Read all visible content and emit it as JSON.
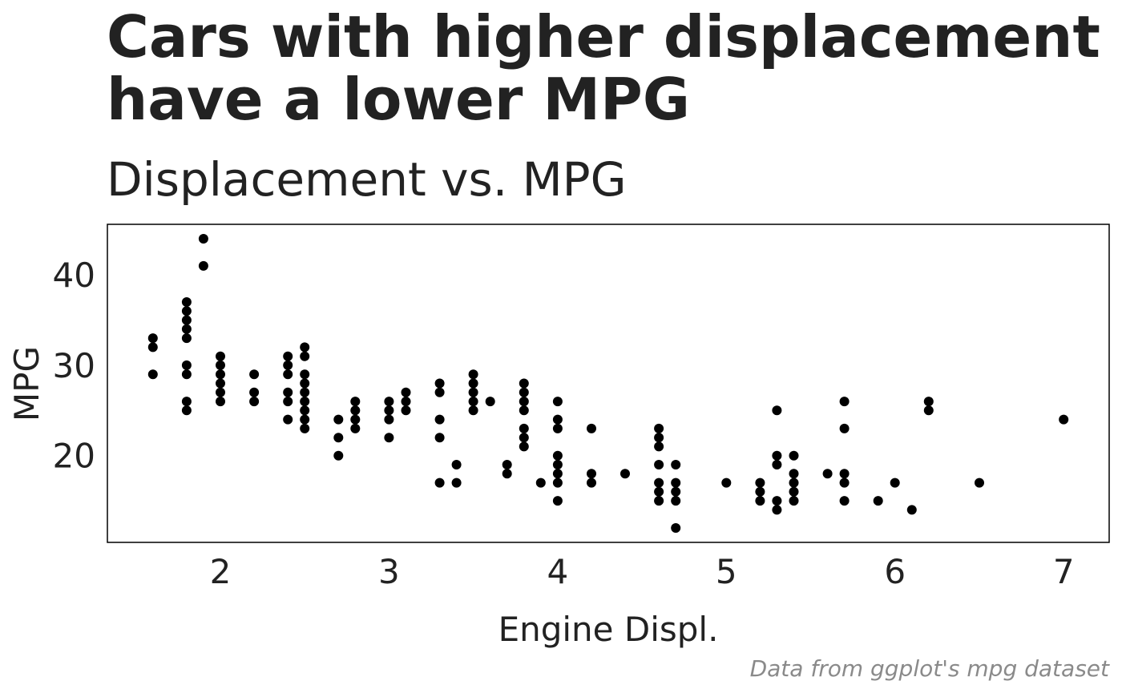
{
  "chart_data": {
    "type": "scatter",
    "title_lines": [
      "Cars with higher displacement",
      "have a lower MPG"
    ],
    "subtitle": "Displacement vs. MPG",
    "xlabel": "Engine Displ.",
    "ylabel": "MPG",
    "caption": "Data from ggplot's mpg dataset",
    "xlim": [
      1.33,
      7.27
    ],
    "ylim": [
      10.4,
      45.6
    ],
    "xticks": [
      2,
      3,
      4,
      5,
      6,
      7
    ],
    "yticks": [
      20,
      30,
      40
    ],
    "grid": false,
    "legend": "none",
    "point_color": "#000000",
    "points": [
      [
        1.6,
        33
      ],
      [
        1.6,
        32
      ],
      [
        1.6,
        29
      ],
      [
        1.8,
        37
      ],
      [
        1.8,
        36
      ],
      [
        1.8,
        35
      ],
      [
        1.8,
        34
      ],
      [
        1.8,
        33
      ],
      [
        1.8,
        30
      ],
      [
        1.8,
        29
      ],
      [
        1.8,
        26
      ],
      [
        1.8,
        25
      ],
      [
        1.9,
        44
      ],
      [
        1.9,
        41
      ],
      [
        2.0,
        31
      ],
      [
        2.0,
        30
      ],
      [
        2.0,
        29
      ],
      [
        2.0,
        28
      ],
      [
        2.0,
        27
      ],
      [
        2.0,
        26
      ],
      [
        2.2,
        29
      ],
      [
        2.2,
        27
      ],
      [
        2.2,
        26
      ],
      [
        2.4,
        31
      ],
      [
        2.4,
        30
      ],
      [
        2.4,
        29
      ],
      [
        2.4,
        27
      ],
      [
        2.4,
        26
      ],
      [
        2.4,
        24
      ],
      [
        2.5,
        32
      ],
      [
        2.5,
        31
      ],
      [
        2.5,
        29
      ],
      [
        2.5,
        28
      ],
      [
        2.5,
        27
      ],
      [
        2.5,
        26
      ],
      [
        2.5,
        25
      ],
      [
        2.5,
        24
      ],
      [
        2.5,
        23
      ],
      [
        2.7,
        24
      ],
      [
        2.7,
        22
      ],
      [
        2.7,
        20
      ],
      [
        2.8,
        26
      ],
      [
        2.8,
        25
      ],
      [
        2.8,
        24
      ],
      [
        2.8,
        23
      ],
      [
        3.0,
        26
      ],
      [
        3.0,
        25
      ],
      [
        3.0,
        24
      ],
      [
        3.0,
        22
      ],
      [
        3.1,
        27
      ],
      [
        3.1,
        26
      ],
      [
        3.1,
        25
      ],
      [
        3.3,
        28
      ],
      [
        3.3,
        27
      ],
      [
        3.3,
        24
      ],
      [
        3.3,
        22
      ],
      [
        3.3,
        17
      ],
      [
        3.4,
        19
      ],
      [
        3.4,
        17
      ],
      [
        3.5,
        29
      ],
      [
        3.5,
        28
      ],
      [
        3.5,
        27
      ],
      [
        3.5,
        26
      ],
      [
        3.5,
        25
      ],
      [
        3.6,
        26
      ],
      [
        3.7,
        19
      ],
      [
        3.7,
        18
      ],
      [
        3.8,
        28
      ],
      [
        3.8,
        27
      ],
      [
        3.8,
        26
      ],
      [
        3.8,
        25
      ],
      [
        3.8,
        23
      ],
      [
        3.8,
        22
      ],
      [
        3.8,
        21
      ],
      [
        3.9,
        17
      ],
      [
        4.0,
        26
      ],
      [
        4.0,
        24
      ],
      [
        4.0,
        23
      ],
      [
        4.0,
        20
      ],
      [
        4.0,
        19
      ],
      [
        4.0,
        18
      ],
      [
        4.0,
        17
      ],
      [
        4.0,
        15
      ],
      [
        4.2,
        23
      ],
      [
        4.2,
        18
      ],
      [
        4.2,
        17
      ],
      [
        4.4,
        18
      ],
      [
        4.6,
        23
      ],
      [
        4.6,
        22
      ],
      [
        4.6,
        21
      ],
      [
        4.6,
        19
      ],
      [
        4.6,
        17
      ],
      [
        4.6,
        16
      ],
      [
        4.6,
        15
      ],
      [
        4.7,
        19
      ],
      [
        4.7,
        17
      ],
      [
        4.7,
        16
      ],
      [
        4.7,
        15
      ],
      [
        4.7,
        12
      ],
      [
        5.0,
        17
      ],
      [
        5.2,
        17
      ],
      [
        5.2,
        16
      ],
      [
        5.2,
        15
      ],
      [
        5.3,
        25
      ],
      [
        5.3,
        20
      ],
      [
        5.3,
        19
      ],
      [
        5.3,
        15
      ],
      [
        5.3,
        14
      ],
      [
        5.4,
        20
      ],
      [
        5.4,
        18
      ],
      [
        5.4,
        17
      ],
      [
        5.4,
        16
      ],
      [
        5.4,
        15
      ],
      [
        5.6,
        18
      ],
      [
        5.7,
        26
      ],
      [
        5.7,
        23
      ],
      [
        5.7,
        18
      ],
      [
        5.7,
        17
      ],
      [
        5.7,
        15
      ],
      [
        5.9,
        15
      ],
      [
        6.0,
        17
      ],
      [
        6.1,
        14
      ],
      [
        6.2,
        26
      ],
      [
        6.2,
        25
      ],
      [
        6.5,
        17
      ],
      [
        7.0,
        24
      ]
    ]
  }
}
